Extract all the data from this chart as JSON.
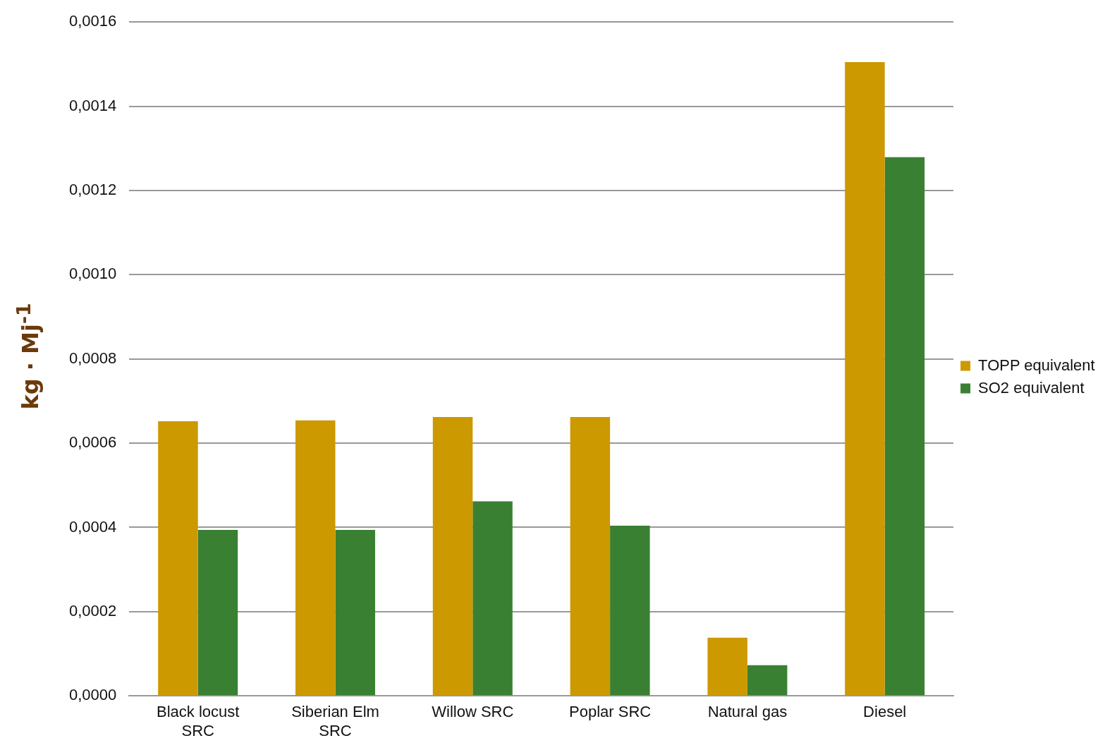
{
  "chart_data": {
    "type": "bar",
    "ylabel": "kg · Mj$^{-1}$",
    "categories": [
      "Black locust SRC",
      "Siberian Elm SRC",
      "Willow SRC",
      "Poplar SRC",
      "Natural gas",
      "Diesel"
    ],
    "series": [
      {
        "name": "TOPP equivalent",
        "color": "#cc9900",
        "values": [
          0.000652,
          0.000654,
          0.000662,
          0.000662,
          0.000138,
          0.001505
        ]
      },
      {
        "name": "SO2 equivalent",
        "color": "#3a8033",
        "values": [
          0.000394,
          0.000394,
          0.000462,
          0.000404,
          7.3e-05,
          0.001279
        ]
      }
    ],
    "ylim": [
      0,
      0.0016
    ],
    "yticks": [
      {
        "value": 0,
        "label": "0,0000"
      },
      {
        "value": 0.0002,
        "label": "0,0002"
      },
      {
        "value": 0.0004,
        "label": "0,0004"
      },
      {
        "value": 0.0006,
        "label": "0,0006"
      },
      {
        "value": 0.0008,
        "label": "0,0008"
      },
      {
        "value": 0.001,
        "label": "0,0010"
      },
      {
        "value": 0.0012,
        "label": "0,0012"
      },
      {
        "value": 0.0014,
        "label": "0,0014"
      },
      {
        "value": 0.0016,
        "label": "0,0016"
      }
    ],
    "grid": "y",
    "legend": "right"
  }
}
